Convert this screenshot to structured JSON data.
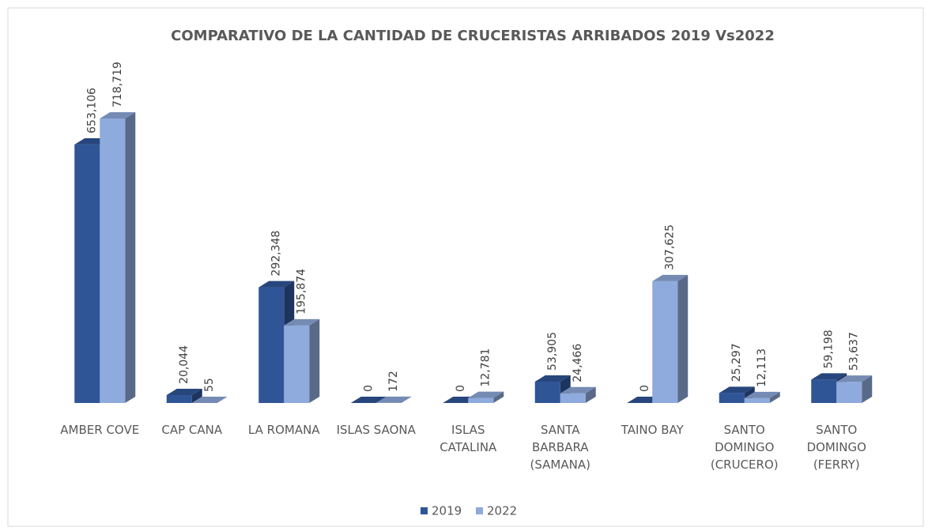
{
  "chart_data": {
    "type": "bar3d",
    "title": "COMPARATIVO DE LA CANTIDAD DE CRUCERISTAS ARRIBADOS 2019 Vs2022",
    "categories": [
      "AMBER COVE",
      "CAP CANA",
      "LA ROMANA",
      "ISLAS SAONA",
      "ISLAS CATALINA",
      "SANTA BARBARA (SAMANA)",
      "TAINO BAY",
      "SANTO DOMINGO (CRUCERO)",
      "SANTO DOMINGO (FERRY)"
    ],
    "series": [
      {
        "name": "2019",
        "color": "#2f5597",
        "values": [
          653106,
          20044,
          292348,
          0,
          0,
          53905,
          0,
          25297,
          59198
        ],
        "value_labels": [
          "653,106",
          "20,044",
          "292,348",
          "0",
          "0",
          "53,905",
          "0",
          "25,297",
          "59,198"
        ]
      },
      {
        "name": "2022",
        "color": "#8faadc",
        "values": [
          718719,
          55,
          195874,
          172,
          12781,
          24466,
          307625,
          12113,
          53637
        ],
        "value_labels": [
          "718,719",
          "55",
          "195,874",
          "172",
          "12,781",
          "24,466",
          "307,625",
          "12,113",
          "53,637"
        ]
      }
    ],
    "legend": "bottom"
  }
}
